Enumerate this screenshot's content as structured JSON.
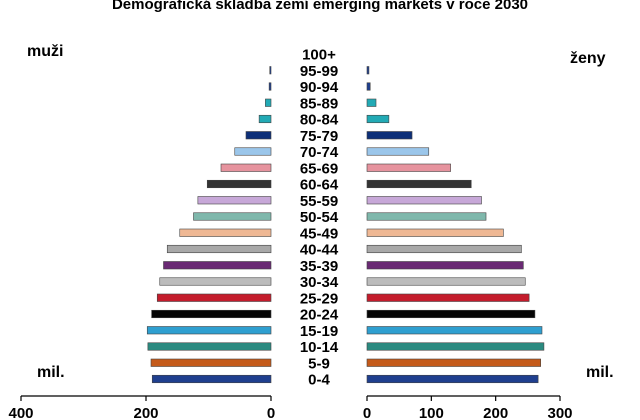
{
  "chart_data": {
    "type": "bar",
    "title": "Demografická skladba zemí emerging markets v roce 2030",
    "left_label": "muži",
    "right_label": "ženy",
    "unit_left": "mil.",
    "unit_right": "mil.",
    "categories": [
      "100+",
      "95-99",
      "90-94",
      "85-89",
      "80-84",
      "75-79",
      "70-74",
      "65-69",
      "60-64",
      "55-59",
      "50-54",
      "45-49",
      "40-44",
      "35-39",
      "30-34",
      "25-29",
      "20-24",
      "15-19",
      "10-14",
      "5-9",
      "0-4"
    ],
    "series": [
      {
        "name": "muži",
        "values": [
          0,
          2,
          3,
          9,
          19,
          40,
          58,
          80,
          102,
          117,
          124,
          146,
          166,
          172,
          178,
          182,
          191,
          198,
          197,
          192,
          190
        ]
      },
      {
        "name": "ženy",
        "values": [
          0,
          3,
          5,
          14,
          34,
          70,
          96,
          130,
          162,
          178,
          185,
          212,
          240,
          243,
          246,
          252,
          261,
          272,
          275,
          270,
          266
        ]
      }
    ],
    "bar_colors": [
      "#1f3f8f",
      "#1f3f8f",
      "#1f3f8f",
      "#22aab5",
      "#22aab5",
      "#0d2f78",
      "#9bc6ea",
      "#e6939e",
      "#333333",
      "#c7a8d8",
      "#7fb8ac",
      "#efb894",
      "#a8a8a8",
      "#6a2a74",
      "#bcbcbc",
      "#c41c2c",
      "#050505",
      "#2f9fd0",
      "#2b8a80",
      "#c45a1a",
      "#1f3f8f"
    ],
    "xlim_left": [
      400,
      0
    ],
    "xlim_right": [
      0,
      300
    ],
    "ticks_left": [
      "400",
      "200",
      "0"
    ],
    "ticks_right": [
      "0",
      "100",
      "200",
      "300"
    ],
    "grid": false
  }
}
